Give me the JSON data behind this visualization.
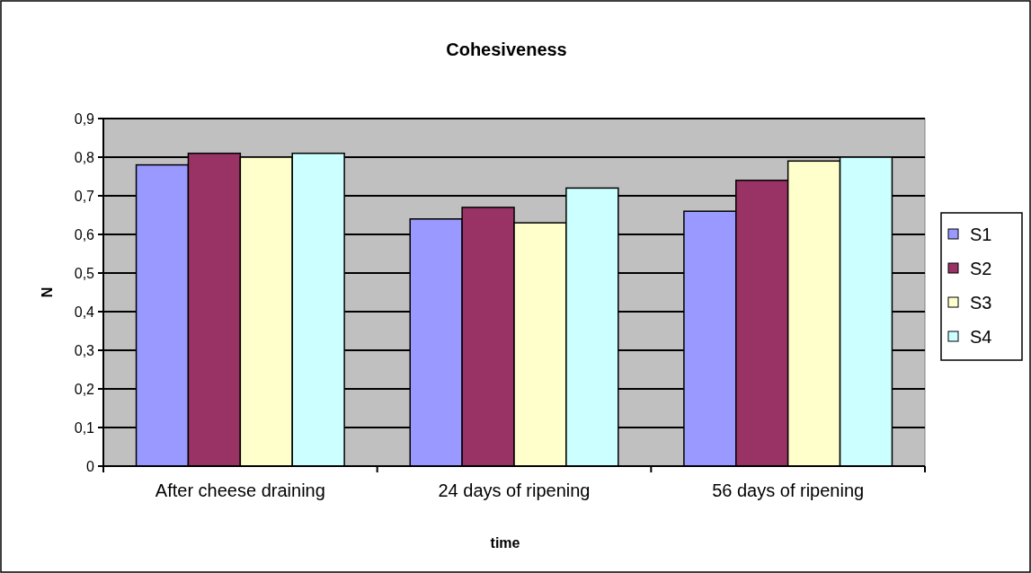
{
  "chart_data": {
    "type": "bar",
    "title": "Cohesiveness",
    "xlabel": "time",
    "ylabel": "N",
    "categories": [
      "After cheese draining",
      "24 days of ripening",
      "56 days of ripening"
    ],
    "series": [
      {
        "name": "S1",
        "color": "#9999ff",
        "values": [
          0.78,
          0.64,
          0.66
        ]
      },
      {
        "name": "S2",
        "color": "#993366",
        "values": [
          0.81,
          0.67,
          0.74
        ]
      },
      {
        "name": "S3",
        "color": "#ffffcc",
        "values": [
          0.8,
          0.63,
          0.79
        ]
      },
      {
        "name": "S4",
        "color": "#ccffff",
        "values": [
          0.81,
          0.72,
          0.8
        ]
      }
    ],
    "ylim": [
      0,
      0.9
    ],
    "yticks": [
      0,
      {
        "value": 0.1,
        "label": "0,1"
      },
      {
        "value": 0.2,
        "label": "0,2"
      },
      {
        "value": 0.3,
        "label": "0,3"
      },
      {
        "value": 0.4,
        "label": "0,4"
      },
      {
        "value": 0.5,
        "label": "0,5"
      },
      {
        "value": 0.6,
        "label": "0,6"
      },
      {
        "value": 0.7,
        "label": "0,7"
      },
      {
        "value": 0.8,
        "label": "0,8"
      },
      {
        "value": 0.9,
        "label": "0,9"
      }
    ],
    "grid": "y",
    "legend": "right"
  }
}
